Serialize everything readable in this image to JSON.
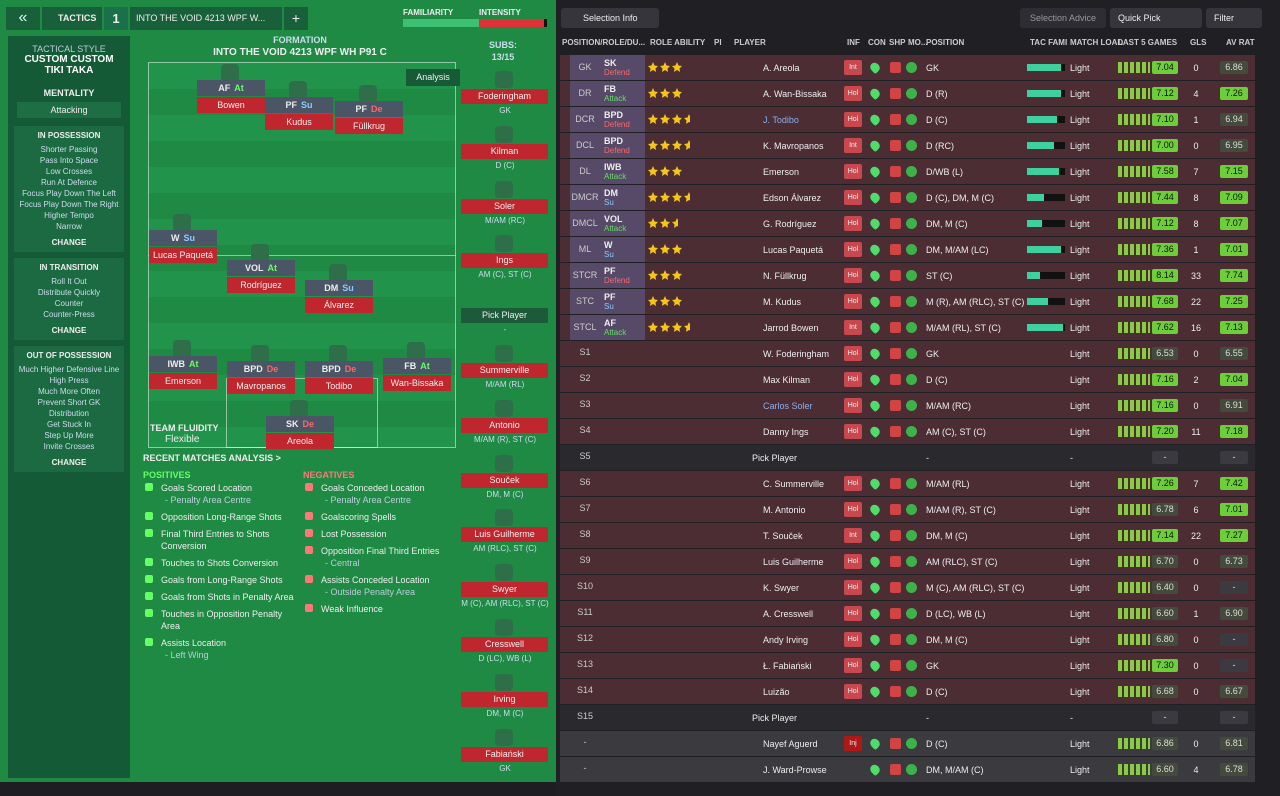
{
  "header": {
    "back": "«",
    "tactics": "TACTICS",
    "slot": "1",
    "tactic_name": "INTO THE VOID 4213 WPF W...",
    "add": "+",
    "familiarity_label": "FAMILIARITY",
    "familiarity": 85,
    "intensity_label": "INTENSITY",
    "intensity": 95
  },
  "style": {
    "label": "TACTICAL STYLE",
    "name": "CUSTOM CUSTOM TIKI TAKA",
    "mentality_label": "MENTALITY",
    "mentality": "Attacking",
    "change": "CHANGE",
    "sections": [
      {
        "title": "IN POSSESSION",
        "items": [
          "Shorter Passing",
          "Pass Into Space",
          "Low Crosses",
          "Run At Defence",
          "Focus Play Down The Left",
          "Focus Play Down The Right",
          "Higher Tempo",
          "Narrow"
        ]
      },
      {
        "title": "IN TRANSITION",
        "items": [
          "Roll It Out",
          "Distribute Quickly",
          "Counter",
          "Counter-Press"
        ]
      },
      {
        "title": "OUT OF POSSESSION",
        "items": [
          "Much Higher Defensive Line",
          "High Press",
          "Much More Often",
          "Prevent Short GK Distribution",
          "Get Stuck In",
          "Step Up More",
          "Invite Crosses"
        ]
      }
    ]
  },
  "formation": {
    "label": "FORMATION",
    "name": "INTO THE VOID 4213 WPF WH P91 C",
    "analysis": "Analysis",
    "fluidity_label": "TEAM FLUIDITY",
    "fluidity": "Flexible",
    "players": [
      {
        "role": "AF",
        "duty": "At",
        "name": "Bowen"
      },
      {
        "role": "PF",
        "duty": "Su",
        "name": "Kudus"
      },
      {
        "role": "PF",
        "duty": "De",
        "name": "Füllkrug"
      },
      {
        "role": "W",
        "duty": "Su",
        "name": "Lucas Paquetá"
      },
      {
        "role": "VOL",
        "duty": "At",
        "name": "Rodríguez"
      },
      {
        "role": "DM",
        "duty": "Su",
        "name": "Álvarez"
      },
      {
        "role": "IWB",
        "duty": "At",
        "name": "Emerson"
      },
      {
        "role": "BPD",
        "duty": "De",
        "name": "Mavropanos"
      },
      {
        "role": "BPD",
        "duty": "De",
        "name": "Todibo"
      },
      {
        "role": "FB",
        "duty": "At",
        "name": "Wan-Bissaka"
      },
      {
        "role": "SK",
        "duty": "De",
        "name": "Areola"
      }
    ]
  },
  "subs": {
    "label": "SUBS:",
    "count": "13/15",
    "list": [
      {
        "name": "Foderingham",
        "pos": "GK"
      },
      {
        "name": "Kilman",
        "pos": "D (C)"
      },
      {
        "name": "Soler",
        "pos": "M/AM (RC)"
      },
      {
        "name": "Ings",
        "pos": "AM (C), ST (C)"
      },
      {
        "name": "Pick Player",
        "pos": "-"
      },
      {
        "name": "Summerville",
        "pos": "M/AM (RL)"
      },
      {
        "name": "Antonio",
        "pos": "M/AM (R), ST (C)"
      },
      {
        "name": "Souček",
        "pos": "DM, M (C)"
      },
      {
        "name": "Luis Guilherme",
        "pos": "AM (RLC), ST (C)"
      },
      {
        "name": "Swyer",
        "pos": "M (C), AM (RLC), ST (C)"
      },
      {
        "name": "Cresswell",
        "pos": "D (LC), WB (L)"
      },
      {
        "name": "Irving",
        "pos": "DM, M (C)"
      },
      {
        "name": "Fabiański",
        "pos": "GK"
      }
    ]
  },
  "analysis": {
    "title": "RECENT MATCHES ANALYSIS >",
    "positives_label": "POSITIVES",
    "negatives_label": "NEGATIVES",
    "positives": [
      {
        "text": "Goals Scored Location",
        "sub": "- Penalty Area Centre"
      },
      {
        "text": "Opposition Long-Range Shots"
      },
      {
        "text": "Final Third Entries to Shots Conversion"
      },
      {
        "text": "Touches to Shots Conversion"
      },
      {
        "text": "Goals from Long-Range Shots"
      },
      {
        "text": "Goals from Shots in Penalty Area"
      },
      {
        "text": "Touches in Opposition Penalty Area"
      },
      {
        "text": "Assists Location",
        "sub": "- Left Wing"
      }
    ],
    "negatives": [
      {
        "text": "Goals Conceded Location",
        "sub": "- Penalty Area Centre"
      },
      {
        "text": "Goalscoring Spells"
      },
      {
        "text": "Lost Possession"
      },
      {
        "text": "Opposition Final Third Entries",
        "sub": "- Central"
      },
      {
        "text": "Assists Conceded Location",
        "sub": "- Outside Penalty Area"
      },
      {
        "text": "Weak Influence"
      }
    ]
  },
  "toolbar": {
    "selection_info": "Selection Info",
    "selection_advice": "Selection Advice",
    "quick_pick": "Quick Pick",
    "filter": "Filter"
  },
  "table": {
    "columns": [
      "POSITION/ROLE/DU...",
      "ROLE ABILITY",
      "PI",
      "PLAYER",
      "INF",
      "CON",
      "SHP",
      "MO...",
      "POSITION",
      "TAC FAMI",
      "MATCH LOAD",
      "LAST 5 GAMES",
      "GLS",
      "AV RAT"
    ],
    "rows": [
      {
        "pos": "GK",
        "role": "SK",
        "duty": "Defend",
        "ability": 3,
        "name": "A. Areola",
        "inf": "Int",
        "position": "GK",
        "tac": 90,
        "load": "Light",
        "rating": "7.04",
        "gls": "0",
        "avrat": "6.86"
      },
      {
        "pos": "DR",
        "role": "FB",
        "duty": "Attack",
        "ability": 3,
        "name": "A. Wan-Bissaka",
        "inf": "Hol",
        "position": "D (R)",
        "tac": 90,
        "load": "Light",
        "rating": "7.12",
        "gls": "4",
        "avrat": "7.26"
      },
      {
        "pos": "DCR",
        "role": "BPD",
        "duty": "Defend",
        "ability": 3.5,
        "name": "J. Todibo",
        "inf": "Hol",
        "position": "D (C)",
        "tac": 80,
        "load": "Light",
        "rating": "7.10",
        "gls": "1",
        "avrat": "6.94"
      },
      {
        "pos": "DCL",
        "role": "BPD",
        "duty": "Defend",
        "ability": 3.5,
        "name": "K. Mavropanos",
        "inf": "Int",
        "position": "D (RC)",
        "tac": 70,
        "load": "Light",
        "rating": "7.00",
        "gls": "0",
        "avrat": "6.95"
      },
      {
        "pos": "DL",
        "role": "IWB",
        "duty": "Attack",
        "ability": 3,
        "name": "Emerson",
        "inf": "Hol",
        "position": "D/WB (L)",
        "tac": 85,
        "load": "Light",
        "rating": "7.58",
        "gls": "7",
        "avrat": "7.15"
      },
      {
        "pos": "DMCR",
        "role": "DM",
        "duty": "Su",
        "ability": 3.5,
        "name": "Edson Álvarez",
        "inf": "Hol",
        "position": "D (C), DM, M (C)",
        "tac": 45,
        "load": "Light",
        "rating": "7.44",
        "gls": "8",
        "avrat": "7.09"
      },
      {
        "pos": "DMCL",
        "role": "VOL",
        "duty": "Attack",
        "ability": 2.5,
        "name": "G. Rodríguez",
        "inf": "Hol",
        "position": "DM, M (C)",
        "tac": 40,
        "load": "Light",
        "rating": "7.12",
        "gls": "8",
        "avrat": "7.07"
      },
      {
        "pos": "ML",
        "role": "W",
        "duty": "Su",
        "ability": 3,
        "name": "Lucas Paquetá",
        "inf": "Hol",
        "position": "DM, M/AM (LC)",
        "tac": 90,
        "load": "Light",
        "rating": "7.36",
        "gls": "1",
        "avrat": "7.01"
      },
      {
        "pos": "STCR",
        "role": "PF",
        "duty": "Defend",
        "ability": 3,
        "name": "N. Füllkrug",
        "inf": "Hol",
        "position": "ST (C)",
        "tac": 35,
        "load": "Light",
        "rating": "8.14",
        "gls": "33",
        "avrat": "7.74"
      },
      {
        "pos": "STC",
        "role": "PF",
        "duty": "Su",
        "ability": 3,
        "name": "M. Kudus",
        "inf": "Hol",
        "position": "M (R), AM (RLC), ST (C)",
        "tac": 55,
        "load": "Light",
        "rating": "7.68",
        "gls": "22",
        "avrat": "7.25"
      },
      {
        "pos": "STCL",
        "role": "AF",
        "duty": "Attack",
        "ability": 3.5,
        "name": "Jarrod Bowen",
        "inf": "Int",
        "position": "M/AM (RL), ST (C)",
        "tac": 95,
        "load": "Light",
        "rating": "7.62",
        "gls": "16",
        "avrat": "7.13"
      },
      {
        "pos": "S1",
        "name": "W. Foderingham",
        "inf": "Hol",
        "position": "GK",
        "load": "Light",
        "rating": "6.53",
        "gls": "0",
        "avrat": "6.55"
      },
      {
        "pos": "S2",
        "name": "Max Kilman",
        "inf": "Hol",
        "position": "D (C)",
        "load": "Light",
        "rating": "7.16",
        "gls": "2",
        "avrat": "7.04"
      },
      {
        "pos": "S3",
        "name": "Carlos Soler",
        "inf": "Hol",
        "position": "M/AM (RC)",
        "load": "Light",
        "rating": "7.16",
        "gls": "0",
        "avrat": "6.91"
      },
      {
        "pos": "S4",
        "name": "Danny Ings",
        "inf": "Hol",
        "position": "AM (C), ST (C)",
        "load": "Light",
        "rating": "7.20",
        "gls": "11",
        "avrat": "7.18"
      },
      {
        "pos": "S5",
        "name": "Pick Player",
        "position": "-",
        "load": "-",
        "rating": "-",
        "avrat": "-"
      },
      {
        "pos": "S6",
        "name": "C. Summerville",
        "inf": "Hol",
        "position": "M/AM (RL)",
        "load": "Light",
        "rating": "7.26",
        "gls": "7",
        "avrat": "7.42"
      },
      {
        "pos": "S7",
        "name": "M. Antonio",
        "inf": "Hol",
        "position": "M/AM (R), ST (C)",
        "load": "Light",
        "rating": "6.78",
        "gls": "6",
        "avrat": "7.01"
      },
      {
        "pos": "S8",
        "name": "T. Souček",
        "inf": "Int",
        "position": "DM, M (C)",
        "load": "Light",
        "rating": "7.14",
        "gls": "22",
        "avrat": "7.27"
      },
      {
        "pos": "S9",
        "name": "Luis Guilherme",
        "inf": "Hol",
        "position": "AM (RLC), ST (C)",
        "load": "Light",
        "rating": "6.70",
        "gls": "0",
        "avrat": "6.73"
      },
      {
        "pos": "S10",
        "name": "K. Swyer",
        "inf": "Hol",
        "position": "M (C), AM (RLC), ST (C)",
        "load": "Light",
        "rating": "6.40",
        "gls": "0",
        "avrat": "-"
      },
      {
        "pos": "S11",
        "name": "A. Cresswell",
        "inf": "Hol",
        "position": "D (LC), WB (L)",
        "load": "Light",
        "rating": "6.60",
        "gls": "1",
        "avrat": "6.90"
      },
      {
        "pos": "S12",
        "name": "Andy Irving",
        "inf": "Hol",
        "position": "DM, M (C)",
        "load": "Light",
        "rating": "6.80",
        "gls": "0",
        "avrat": "-"
      },
      {
        "pos": "S13",
        "name": "Ł. Fabiański",
        "inf": "Hol",
        "position": "GK",
        "load": "Light",
        "rating": "7.30",
        "gls": "0",
        "avrat": "-"
      },
      {
        "pos": "S14",
        "name": "Luizão",
        "inf": "Hol",
        "position": "D (C)",
        "load": "Light",
        "rating": "6.68",
        "gls": "0",
        "avrat": "6.67"
      },
      {
        "pos": "S15",
        "name": "Pick Player",
        "position": "-",
        "load": "-",
        "rating": "-",
        "avrat": "-"
      },
      {
        "pos": "-",
        "name": "Nayef Aguerd",
        "inf": "Inj",
        "position": "D (C)",
        "load": "Light",
        "rating": "6.86",
        "gls": "0",
        "avrat": "6.81"
      },
      {
        "pos": "-",
        "name": "J. Ward-Prowse",
        "position": "DM, M/AM (C)",
        "load": "Light",
        "rating": "6.60",
        "gls": "4",
        "avrat": "6.78"
      }
    ]
  }
}
